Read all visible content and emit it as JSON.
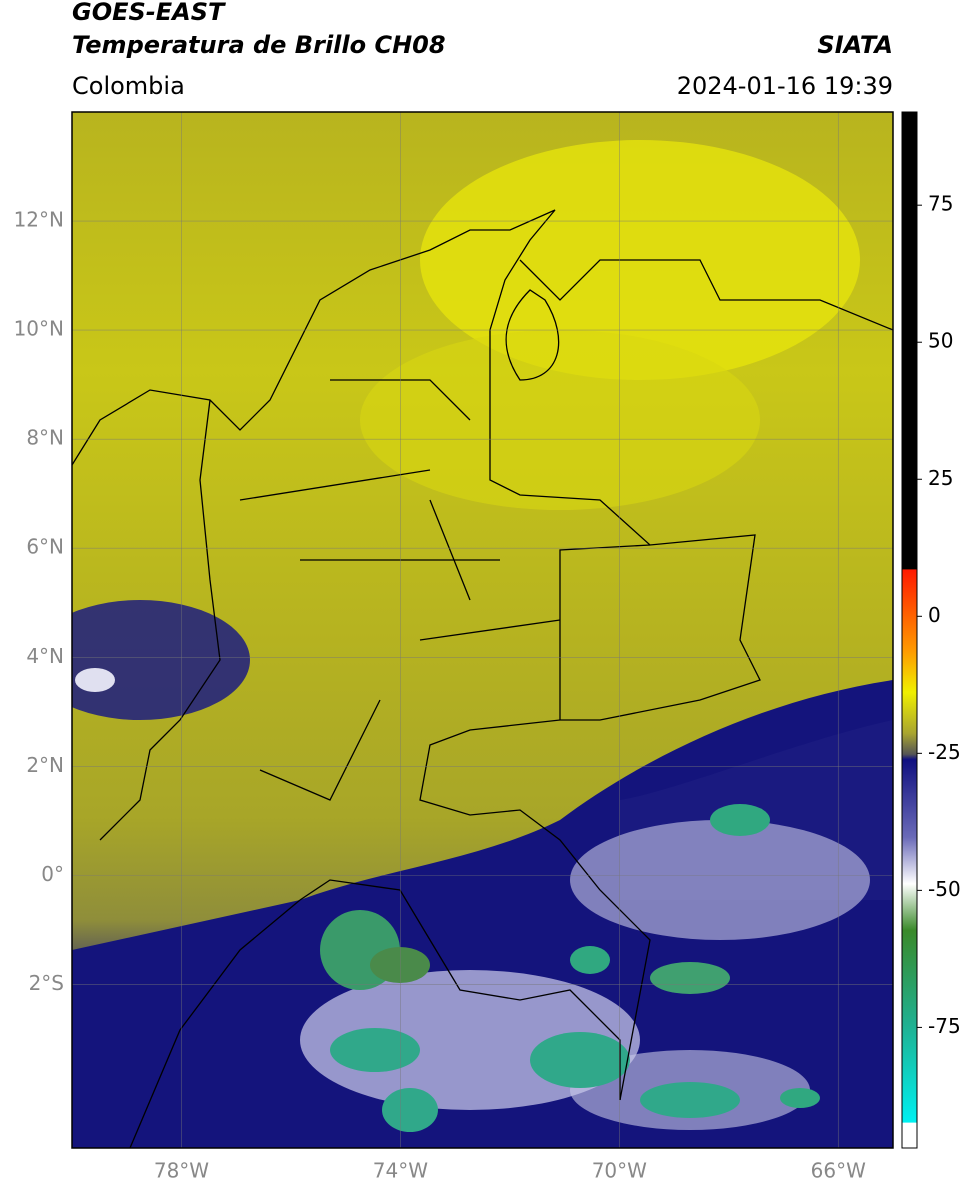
{
  "header": {
    "title": "GOES-EAST",
    "subtitle": "Temperatura de Brillo CH08",
    "region": "Colombia",
    "source": "SIATA",
    "datetime": "2024-01-16 19:39"
  },
  "map": {
    "xlim": [
      -80,
      -65
    ],
    "ylim": [
      -5,
      14
    ],
    "yticks": [
      {
        "value": 12,
        "label": "12°N"
      },
      {
        "value": 10,
        "label": "10°N"
      },
      {
        "value": 8,
        "label": "8°N"
      },
      {
        "value": 6,
        "label": "6°N"
      },
      {
        "value": 4,
        "label": "4°N"
      },
      {
        "value": 2,
        "label": "2°N"
      },
      {
        "value": 0,
        "label": "0°"
      },
      {
        "value": -2,
        "label": "2°S"
      }
    ],
    "xticks": [
      {
        "value": -78,
        "label": "78°W"
      },
      {
        "value": -74,
        "label": "74°W"
      },
      {
        "value": -70,
        "label": "70°W"
      },
      {
        "value": -66,
        "label": "66°W"
      }
    ]
  },
  "colorbar": {
    "lim": [
      -97,
      92
    ],
    "ticks": [
      75,
      50,
      25,
      0,
      -25,
      -50,
      -75
    ]
  }
}
